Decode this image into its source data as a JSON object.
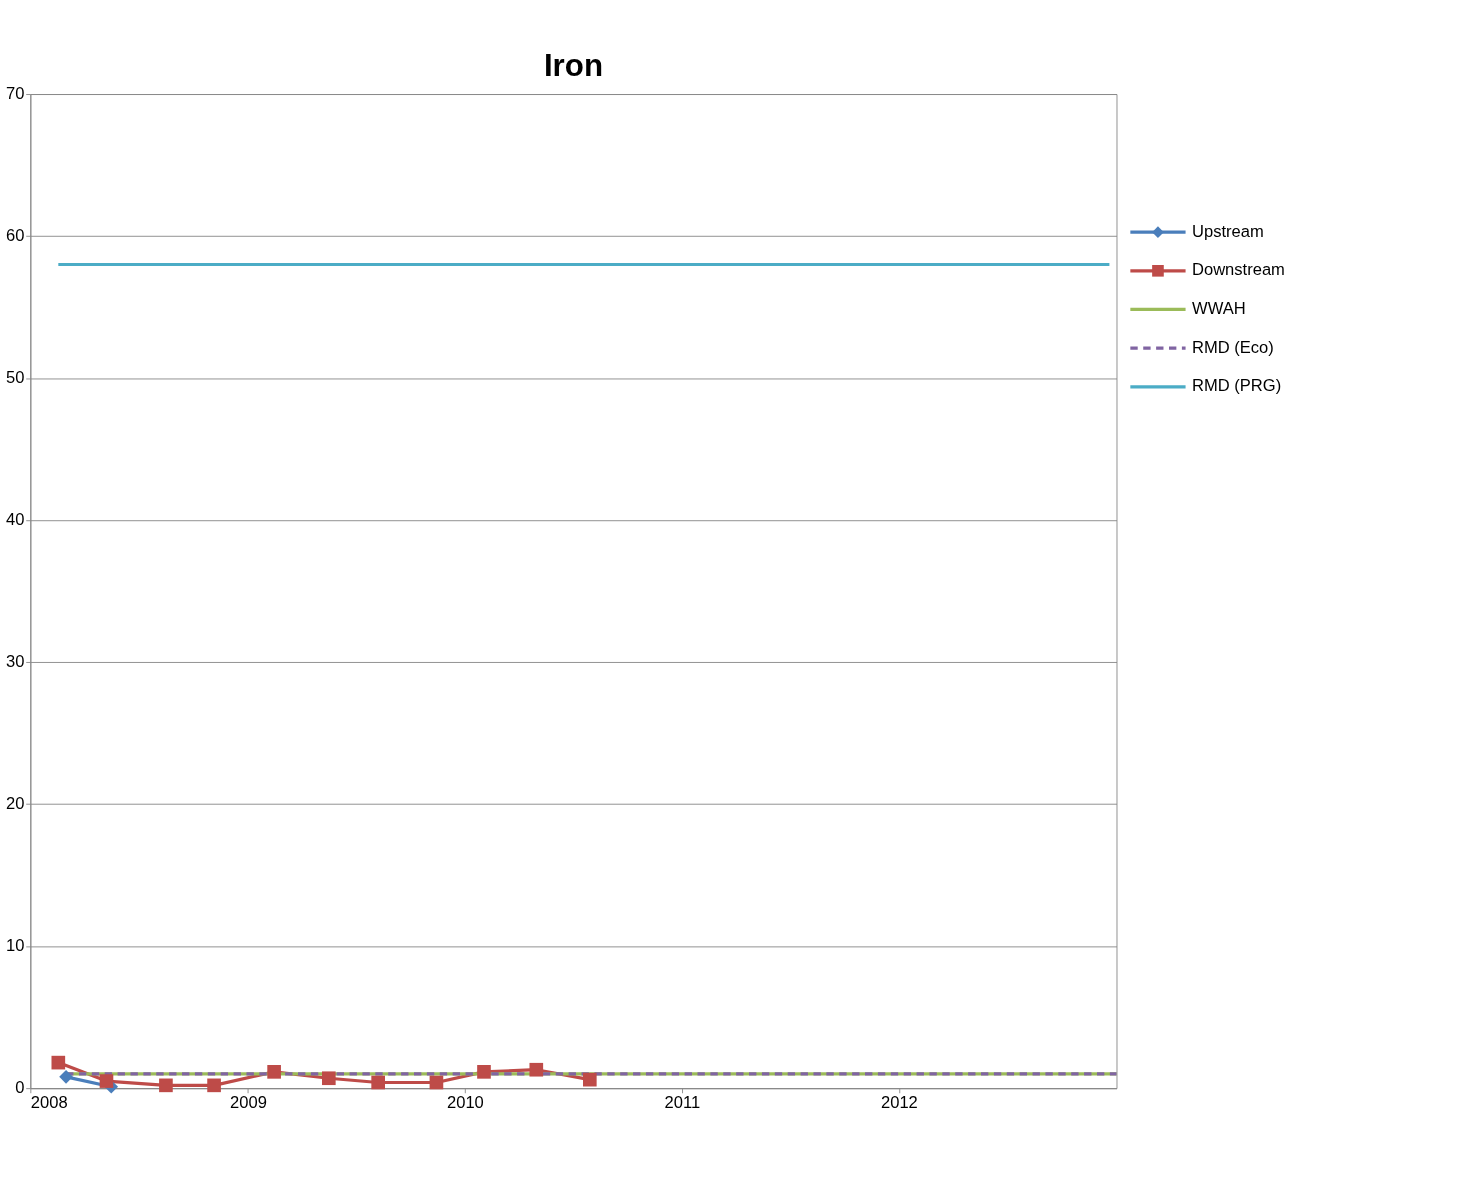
{
  "chart_data": {
    "type": "line",
    "title": "Iron",
    "xlim": [
      "2008",
      "2013"
    ],
    "xticks": [
      "2008",
      "2009",
      "2010",
      "2011",
      "2012"
    ],
    "ylim": [
      0,
      70
    ],
    "yticks": [
      0,
      10,
      20,
      30,
      40,
      50,
      60,
      70
    ],
    "grid": "y",
    "legend": "right",
    "series": [
      {
        "name": "Upstream",
        "color": "#4a7ebb",
        "marker": "diamond",
        "line_style": "solid",
        "x": [
          "2008-03-01",
          "2008-05-16"
        ],
        "values": [
          0.8,
          0.1
        ]
      },
      {
        "name": "Downstream",
        "color": "#be4b48",
        "marker": "square",
        "line_style": "solid",
        "x": [
          "2008-02-17",
          "2008-05-08",
          "2008-08-16",
          "2008-11-05",
          "2009-02-14",
          "2009-05-17",
          "2009-08-08",
          "2009-11-14",
          "2010-02-02",
          "2010-05-01",
          "2010-07-30"
        ],
        "values": [
          1.8,
          0.5,
          0.2,
          0.2,
          1.15,
          0.7,
          0.4,
          0.4,
          1.15,
          1.3,
          0.6
        ]
      },
      {
        "name": "WWAH",
        "color": "#9bbb59",
        "marker": "none",
        "line_style": "solid",
        "x": [
          "2008-03-01",
          "2013-01-01"
        ],
        "values": [
          1.0,
          1.0
        ]
      },
      {
        "name": "RMD (Eco)",
        "color": "#8064a2",
        "marker": "none",
        "line_style": "dashed",
        "x": [
          "2008-03-01",
          "2013-01-01"
        ],
        "values": [
          1.0,
          1.0
        ]
      },
      {
        "name": "RMD (PRG)",
        "color": "#4bacc6",
        "marker": "none",
        "line_style": "solid",
        "x": [
          "2008-02-17",
          "2012-12-20"
        ],
        "values": [
          58,
          58
        ]
      }
    ]
  }
}
